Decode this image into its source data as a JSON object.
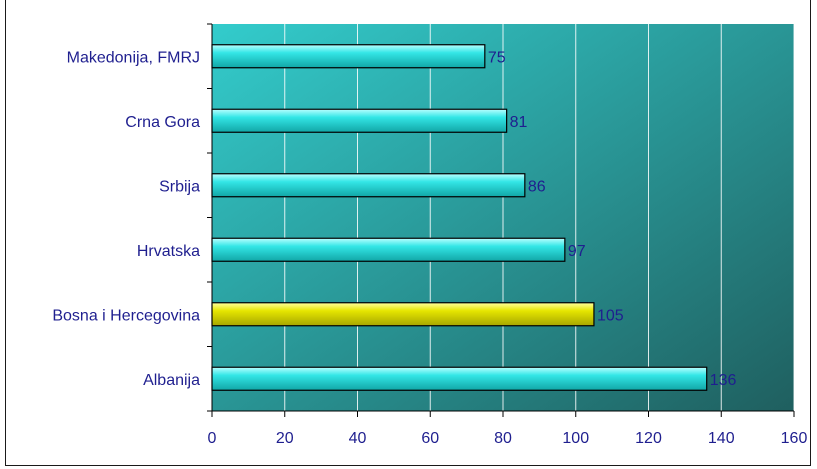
{
  "chart_data": {
    "type": "bar",
    "orientation": "horizontal",
    "title": "",
    "categories": [
      "Makedonija, FMRJ",
      "Crna Gora",
      "Srbija",
      "Hrvatska",
      "Bosna i Hercegovina",
      "Albanija"
    ],
    "values": [
      75,
      81,
      86,
      97,
      105,
      136
    ],
    "data_labels": [
      "75",
      "81",
      "86",
      "97",
      "105",
      "136"
    ],
    "highlighted_category": "Bosna i Hercegovina",
    "xlim": [
      0,
      160
    ],
    "xticks": [
      0,
      20,
      40,
      60,
      80,
      100,
      120,
      140,
      160
    ],
    "xtick_labels": [
      "0",
      "20",
      "40",
      "60",
      "80",
      "100",
      "120",
      "140",
      "160"
    ],
    "xlabel": "",
    "ylabel": "",
    "grid": "vertical",
    "legend": "none",
    "colors": {
      "bar": "#33e6e6",
      "bar_highlight": "#e6e600",
      "plot_bg_start": "#33cccc",
      "plot_bg_end": "#1f5f5f",
      "text": "#1f1f8f",
      "gridline": "#ffffff"
    }
  }
}
